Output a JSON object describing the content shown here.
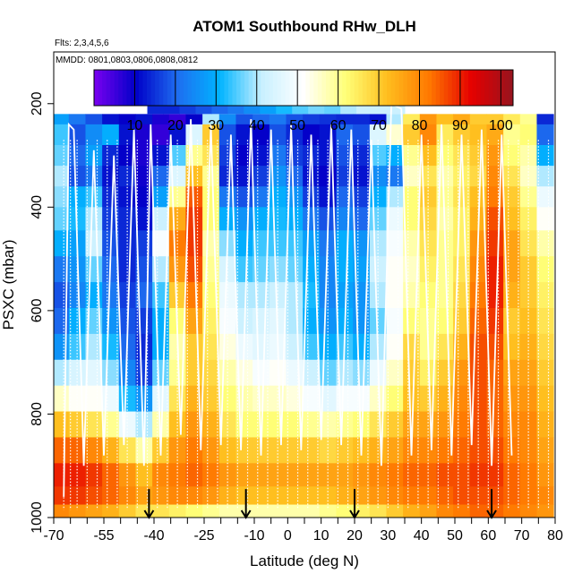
{
  "chart_data": {
    "type": "heatmap",
    "title": "ATOM1 Southbound RHw_DLH",
    "subtitle_flights": "Flts: 2,3,4,5,6",
    "subtitle_dates": "MMDD: 0801,0803,0806,0808,0812",
    "xlabel": "Latitude (deg N)",
    "ylabel": "PSXC (mbar)",
    "xlim": [
      -70,
      80
    ],
    "ylim": [
      1000,
      100
    ],
    "x_ticks": [
      "-70",
      "-55",
      "-40",
      "-25",
      "-10",
      "0",
      "10",
      "20",
      "30",
      "40",
      "50",
      "60",
      "70",
      "80"
    ],
    "y_ticks": [
      "200",
      "400",
      "600",
      "800",
      "1000"
    ],
    "y_tick_values": [
      200,
      400,
      600,
      800,
      1000
    ],
    "colorbar": {
      "range": [
        0,
        103
      ],
      "ticks": [
        "10",
        "20",
        "30",
        "40",
        "50",
        "60",
        "70",
        "80",
        "90",
        "100"
      ],
      "tick_values": [
        10,
        20,
        30,
        40,
        50,
        60,
        70,
        80,
        90,
        100
      ],
      "colors": [
        "#7a00f0",
        "#0000c8",
        "#1e6ef0",
        "#00b4ff",
        "#c8f0ff",
        "#ffffff",
        "#ffff78",
        "#ffbe1e",
        "#ff7800",
        "#e60000",
        "#96141e"
      ]
    },
    "rows_pressure": [
      220,
      260,
      300,
      340,
      380,
      420,
      470,
      520,
      570,
      620,
      670,
      720,
      770,
      820,
      870,
      920,
      960,
      990
    ],
    "lat_cols": [
      -68,
      -63,
      -58,
      -53,
      -48,
      -43,
      -38,
      -33,
      -28,
      -23,
      -18,
      -13,
      -8,
      -3,
      2,
      7,
      12,
      17,
      22,
      27,
      32,
      37,
      42,
      47,
      52,
      57,
      62,
      67,
      72,
      77
    ],
    "top_strip": {
      "lat_range": [
        -42,
        35
      ],
      "pressure_range": [
        175,
        220
      ],
      "values": [
        14,
        14,
        16,
        18,
        20,
        22,
        25,
        28,
        32,
        35,
        37,
        36,
        40,
        42,
        42,
        42
      ]
    },
    "rh_grid": [
      [
        28,
        22,
        18,
        12,
        10,
        12,
        8,
        6,
        10,
        40,
        25,
        18,
        20,
        22,
        18,
        16,
        15,
        14,
        14,
        12,
        40,
        65,
        78,
        72,
        75,
        70,
        70,
        65,
        60,
        14
      ],
      [
        34,
        18,
        25,
        30,
        12,
        8,
        6,
        12,
        45,
        70,
        18,
        12,
        10,
        18,
        14,
        10,
        12,
        20,
        18,
        45,
        55,
        70,
        80,
        65,
        70,
        72,
        75,
        60,
        62,
        20
      ],
      [
        36,
        20,
        28,
        14,
        10,
        8,
        12,
        35,
        60,
        66,
        16,
        10,
        12,
        22,
        16,
        14,
        12,
        18,
        14,
        35,
        30,
        60,
        72,
        62,
        66,
        70,
        78,
        62,
        58,
        30
      ],
      [
        40,
        18,
        22,
        12,
        14,
        9,
        20,
        45,
        72,
        60,
        14,
        12,
        16,
        26,
        20,
        12,
        10,
        16,
        12,
        25,
        22,
        56,
        66,
        58,
        64,
        68,
        80,
        66,
        56,
        40
      ],
      [
        38,
        30,
        34,
        14,
        12,
        10,
        28,
        60,
        85,
        62,
        22,
        18,
        22,
        30,
        26,
        16,
        12,
        20,
        16,
        30,
        40,
        62,
        70,
        60,
        66,
        72,
        82,
        70,
        60,
        48
      ],
      [
        36,
        32,
        40,
        16,
        14,
        12,
        42,
        75,
        88,
        62,
        30,
        26,
        30,
        32,
        30,
        22,
        18,
        24,
        20,
        36,
        48,
        62,
        68,
        58,
        64,
        74,
        86,
        72,
        64,
        52
      ],
      [
        30,
        28,
        42,
        18,
        14,
        16,
        50,
        82,
        88,
        58,
        38,
        30,
        34,
        34,
        34,
        28,
        22,
        30,
        26,
        40,
        50,
        58,
        66,
        60,
        64,
        78,
        88,
        76,
        66,
        58
      ],
      [
        22,
        26,
        36,
        20,
        14,
        18,
        40,
        78,
        86,
        60,
        44,
        34,
        36,
        38,
        36,
        30,
        24,
        30,
        28,
        42,
        52,
        56,
        64,
        60,
        66,
        80,
        90,
        76,
        70,
        62
      ],
      [
        18,
        24,
        30,
        22,
        16,
        20,
        34,
        70,
        82,
        62,
        48,
        40,
        40,
        42,
        40,
        32,
        24,
        28,
        26,
        40,
        52,
        58,
        62,
        60,
        68,
        82,
        90,
        74,
        70,
        64
      ],
      [
        20,
        30,
        36,
        26,
        18,
        16,
        30,
        62,
        76,
        64,
        50,
        42,
        44,
        46,
        40,
        30,
        26,
        30,
        26,
        36,
        50,
        62,
        60,
        62,
        70,
        84,
        88,
        70,
        72,
        66
      ],
      [
        26,
        34,
        40,
        32,
        20,
        14,
        30,
        58,
        70,
        66,
        54,
        48,
        46,
        48,
        42,
        34,
        30,
        34,
        30,
        40,
        52,
        68,
        60,
        66,
        74,
        86,
        86,
        72,
        74,
        68
      ],
      [
        40,
        44,
        46,
        38,
        24,
        16,
        36,
        60,
        70,
        68,
        58,
        54,
        50,
        52,
        48,
        42,
        36,
        40,
        38,
        48,
        56,
        70,
        64,
        70,
        78,
        86,
        84,
        76,
        76,
        70
      ],
      [
        56,
        52,
        52,
        48,
        32,
        26,
        46,
        66,
        74,
        70,
        62,
        58,
        56,
        56,
        54,
        50,
        46,
        50,
        50,
        56,
        62,
        72,
        70,
        74,
        80,
        86,
        84,
        78,
        78,
        72
      ],
      [
        72,
        70,
        66,
        60,
        48,
        40,
        58,
        72,
        78,
        74,
        66,
        62,
        62,
        62,
        62,
        60,
        58,
        60,
        62,
        66,
        70,
        76,
        76,
        78,
        82,
        86,
        84,
        80,
        80,
        74
      ],
      [
        84,
        84,
        80,
        74,
        66,
        58,
        70,
        78,
        82,
        78,
        72,
        70,
        70,
        70,
        70,
        70,
        68,
        70,
        72,
        74,
        76,
        80,
        80,
        82,
        84,
        86,
        86,
        82,
        80,
        76
      ],
      [
        90,
        90,
        88,
        84,
        78,
        72,
        80,
        82,
        84,
        82,
        78,
        76,
        76,
        76,
        76,
        76,
        76,
        76,
        78,
        80,
        82,
        84,
        84,
        86,
        86,
        88,
        88,
        84,
        82,
        78
      ],
      [
        88,
        88,
        86,
        84,
        80,
        76,
        78,
        80,
        80,
        78,
        74,
        72,
        72,
        72,
        72,
        72,
        72,
        74,
        76,
        78,
        80,
        82,
        82,
        84,
        86,
        86,
        86,
        84,
        82,
        80
      ],
      [
        80,
        78,
        76,
        74,
        70,
        66,
        66,
        64,
        62,
        60,
        58,
        58,
        58,
        58,
        58,
        58,
        60,
        62,
        64,
        66,
        70,
        74,
        76,
        80,
        82,
        84,
        84,
        82,
        80,
        78
      ]
    ],
    "flight_profiles_lat": [
      -67,
      -65,
      -63,
      -60,
      -57,
      -54,
      -51,
      -48,
      -45,
      -42,
      -39,
      -36,
      -33,
      -30,
      -27,
      -24,
      -21,
      -18,
      -15,
      -12,
      -9,
      -6,
      -3,
      0,
      3,
      6,
      9,
      12,
      15,
      18,
      21,
      24,
      27,
      30,
      33,
      36,
      39,
      42,
      45,
      48,
      51,
      54,
      57,
      60,
      63,
      66,
      69,
      72,
      75,
      78
    ],
    "ceiling_profile": {
      "lat": [
        -67,
        -65.5,
        -64,
        -61,
        -58,
        -55,
        -52,
        -49,
        -46,
        -43,
        -41,
        -38,
        -35,
        -32,
        -29,
        -26,
        -23,
        -20,
        -17,
        -14,
        -11,
        -8,
        -5,
        -2,
        1,
        4,
        7,
        10,
        13,
        16,
        19,
        22,
        25,
        28,
        31,
        34,
        37,
        40,
        43,
        46,
        49,
        52,
        55,
        58,
        61,
        64,
        67
      ],
      "pressure": [
        960,
        240,
        250,
        900,
        290,
        880,
        300,
        860,
        250,
        900,
        240,
        880,
        260,
        840,
        230,
        870,
        240,
        860,
        260,
        870,
        230,
        880,
        250,
        860,
        240,
        870,
        260,
        850,
        240,
        860,
        250,
        880,
        270,
        900,
        200,
        210,
        880,
        260,
        870,
        240,
        880,
        260,
        860,
        250,
        900,
        260,
        880
      ]
    },
    "arrows_lat": [
      -41.5,
      -12.5,
      20,
      61
    ],
    "arrow_pressure_range": [
      945,
      1000
    ]
  }
}
